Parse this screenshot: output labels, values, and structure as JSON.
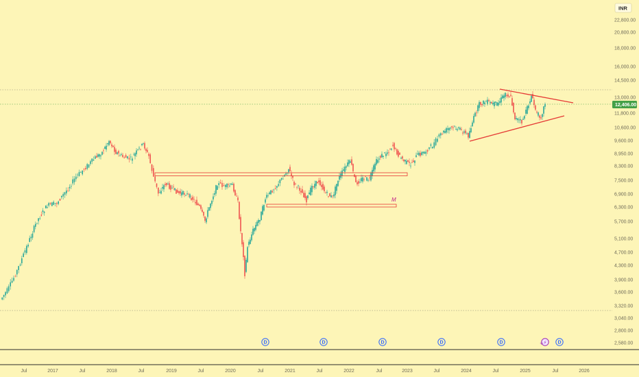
{
  "currency_label": "INR",
  "colors": {
    "background": "#fdf5b7",
    "up": "#26a69a",
    "down": "#ef5350",
    "trendline": "#e53935",
    "zone": "#e53935",
    "dividend_marker": "#2962ff",
    "axis_text": "#6e6a58",
    "last_price_bg": "#43a047"
  },
  "chart_data": {
    "type": "candlestick",
    "y_scale": "log",
    "ylim": [
      2400,
      23500
    ],
    "y_ticks": [
      "22,800.00",
      "20,800.00",
      "18,000.00",
      "16,000.00",
      "14,500.00",
      "13,000.00",
      "11,800.00",
      "10,600.00",
      "9,600.00",
      "8,950.00",
      "8,300.00",
      "7,500.00",
      "6,900.00",
      "6,300.00",
      "5,700.00",
      "5,100.00",
      "4,700.00",
      "4,300.00",
      "3,900.00",
      "3,600.00",
      "3,320.00",
      "3,040.00",
      "2,800.00",
      "2,580.00"
    ],
    "x_ticks": [
      "Jul",
      "2017",
      "Jul",
      "2018",
      "Jul",
      "2019",
      "Jul",
      "2020",
      "Jul",
      "2021",
      "Jul",
      "2022",
      "Jul",
      "2023",
      "Jul",
      "2024",
      "Jul",
      "2025",
      "Jul",
      "2026"
    ],
    "last_price": 12406,
    "last_price_label": "12,406.00",
    "price_path": [
      [
        "2016-03",
        3300
      ],
      [
        "2016-06",
        3550
      ],
      [
        "2016-09",
        3900
      ],
      [
        "2016-12",
        4400
      ],
      [
        "2017-03",
        5200
      ],
      [
        "2017-06",
        5800
      ],
      [
        "2017-09",
        6300
      ],
      [
        "2017-12",
        7100
      ],
      [
        "2018-03",
        7900
      ],
      [
        "2018-06",
        8700
      ],
      [
        "2018-09",
        9800
      ],
      [
        "2018-11",
        9200
      ],
      [
        "2019-02",
        9000
      ],
      [
        "2019-05",
        9400
      ],
      [
        "2019-06",
        9900
      ],
      [
        "2019-08",
        8700
      ],
      [
        "2019-09",
        7400
      ],
      [
        "2019-10",
        6900
      ],
      [
        "2019-11",
        7300
      ],
      [
        "2020-01",
        7300
      ],
      [
        "2020-03",
        6700
      ],
      [
        "2020-05",
        5800
      ],
      [
        "2020-07",
        6700
      ],
      [
        "2020-09",
        7500
      ],
      [
        "2020-11",
        7300
      ],
      [
        "2021-01",
        7700
      ],
      [
        "2021-03",
        6800
      ],
      [
        "2021-04",
        5400
      ],
      [
        "2021-05",
        4000
      ],
      [
        "2021-06",
        4800
      ],
      [
        "2021-08",
        5600
      ],
      [
        "2021-10",
        6500
      ],
      [
        "2021-12",
        7100
      ],
      [
        "2022-02",
        7700
      ],
      [
        "2022-03",
        8400
      ],
      [
        "2022-04",
        7800
      ],
      [
        "2022-06",
        7400
      ],
      [
        "2022-08",
        7000
      ],
      [
        "2022-10",
        6700
      ],
      [
        "2022-12",
        7300
      ],
      [
        "2023-02",
        7100
      ],
      [
        "2023-04",
        7900
      ],
      [
        "2023-05",
        8900
      ],
      [
        "2023-06",
        7500
      ],
      [
        "2023-08",
        7700
      ],
      [
        "2023-10",
        8400
      ],
      [
        "2023-12",
        9400
      ],
      [
        "2024-02",
        9800
      ],
      [
        "2024-04",
        8900
      ],
      [
        "2024-05",
        8400
      ],
      [
        "2024-07",
        9100
      ],
      [
        "2024-09",
        9800
      ],
      [
        "2024-11",
        10500
      ],
      [
        "2025-01",
        10100
      ],
      [
        "2025-03",
        11200
      ],
      [
        "2025-05",
        12500
      ],
      [
        "2025-07",
        12800
      ],
      [
        "2025-09",
        12500
      ],
      [
        "2025-11",
        13200
      ],
      [
        "2026-01",
        11300
      ],
      [
        "2026-03",
        11900
      ],
      [
        "2026-04",
        13300
      ],
      [
        "2026-05",
        11500
      ],
      [
        "2026-06",
        11200
      ],
      [
        "2026-07",
        12406
      ]
    ],
    "annotations": {
      "resistance_zone": {
        "price_low": 7800,
        "price_high": 7950,
        "from": "2019-09",
        "to": "2023-12"
      },
      "support_zone": {
        "price_low": 6150,
        "price_high": 6300,
        "from": "2021-11",
        "to": "2024-04"
      },
      "triangle_upper": [
        [
          "2025-09",
          13200
        ],
        [
          "2027-01",
          12600
        ]
      ],
      "triangle_lower": [
        [
          "2025-01",
          9700
        ],
        [
          "2027-01",
          11500
        ]
      ],
      "resistance_line": 13700,
      "last_price_line": 12406,
      "support_line": 3100,
      "pattern_label": "M",
      "dividend_label": "D",
      "earnings_glyph": "⚡"
    }
  }
}
